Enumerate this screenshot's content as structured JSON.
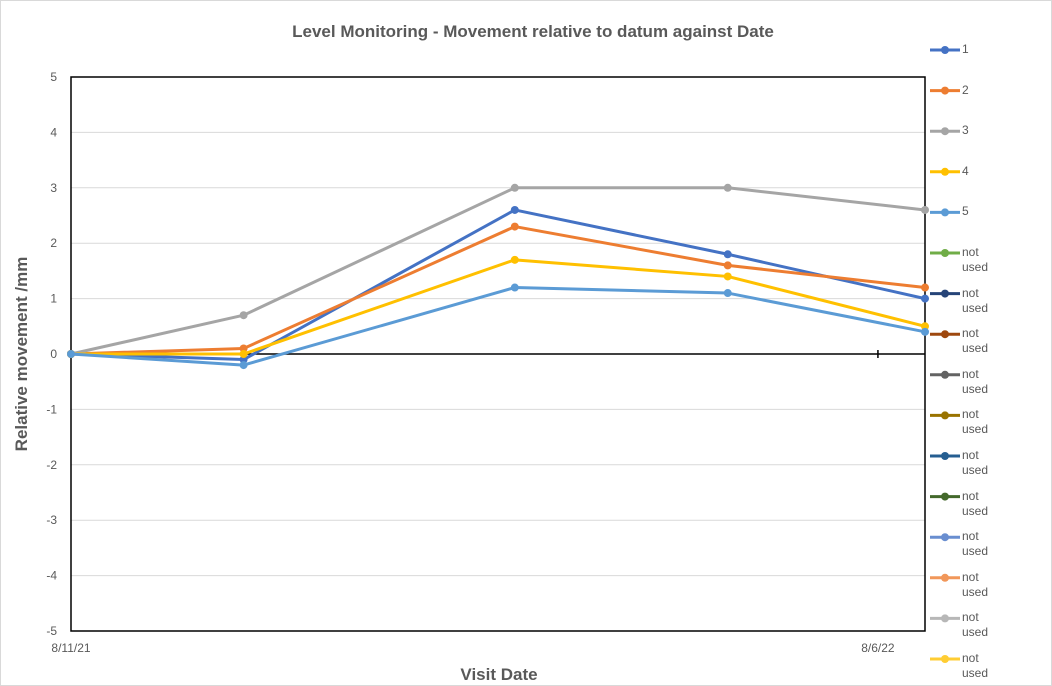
{
  "chart_data": {
    "type": "line",
    "title": "Level Monitoring - Movement relative to datum against Date",
    "x_label": "Visit Date",
    "y_label": "Relative movement /mm",
    "x": [
      0,
      77,
      198,
      293,
      381
    ],
    "xlim": [
      0,
      381
    ],
    "xticks": [
      {
        "value": 0,
        "label": "8/11/21"
      },
      {
        "value": 360,
        "label": "8/6/22"
      }
    ],
    "ylim": [
      -5,
      5
    ],
    "yticks": [
      -5,
      -4,
      -3,
      -2,
      -1,
      0,
      1,
      2,
      3,
      4,
      5
    ],
    "grid": true,
    "legend": "right",
    "series": [
      {
        "name": "1",
        "color": "#4472c4",
        "values": [
          0,
          -0.1,
          2.6,
          1.8,
          1.0
        ]
      },
      {
        "name": "2",
        "color": "#ed7d31",
        "values": [
          0,
          0.1,
          2.3,
          1.6,
          1.2
        ]
      },
      {
        "name": "3",
        "color": "#a5a5a5",
        "values": [
          0,
          0.7,
          3.0,
          3.0,
          2.6
        ]
      },
      {
        "name": "4",
        "color": "#ffc000",
        "values": [
          0,
          0.0,
          1.7,
          1.4,
          0.5
        ]
      },
      {
        "name": "5",
        "color": "#5b9bd5",
        "values": [
          0,
          -0.2,
          1.2,
          1.1,
          0.4
        ]
      },
      {
        "name": "not used",
        "color": "#70ad47",
        "values": [
          null,
          null,
          null,
          null,
          null
        ]
      },
      {
        "name": "not used",
        "color": "#264478",
        "values": [
          null,
          null,
          null,
          null,
          null
        ]
      },
      {
        "name": "not used",
        "color": "#9e480e",
        "values": [
          null,
          null,
          null,
          null,
          null
        ]
      },
      {
        "name": "not used",
        "color": "#636363",
        "values": [
          null,
          null,
          null,
          null,
          null
        ]
      },
      {
        "name": "not used",
        "color": "#997300",
        "values": [
          null,
          null,
          null,
          null,
          null
        ]
      },
      {
        "name": "not used",
        "color": "#255e91",
        "values": [
          null,
          null,
          null,
          null,
          null
        ]
      },
      {
        "name": "not used",
        "color": "#43682b",
        "values": [
          null,
          null,
          null,
          null,
          null
        ]
      },
      {
        "name": "not used",
        "color": "#698ed0",
        "values": [
          null,
          null,
          null,
          null,
          null
        ]
      },
      {
        "name": "not used",
        "color": "#f1975a",
        "values": [
          null,
          null,
          null,
          null,
          null
        ]
      },
      {
        "name": "not used",
        "color": "#b7b7b7",
        "values": [
          null,
          null,
          null,
          null,
          null
        ]
      },
      {
        "name": "not used",
        "color": "#ffcd33",
        "values": [
          null,
          null,
          null,
          null,
          null
        ]
      }
    ]
  }
}
